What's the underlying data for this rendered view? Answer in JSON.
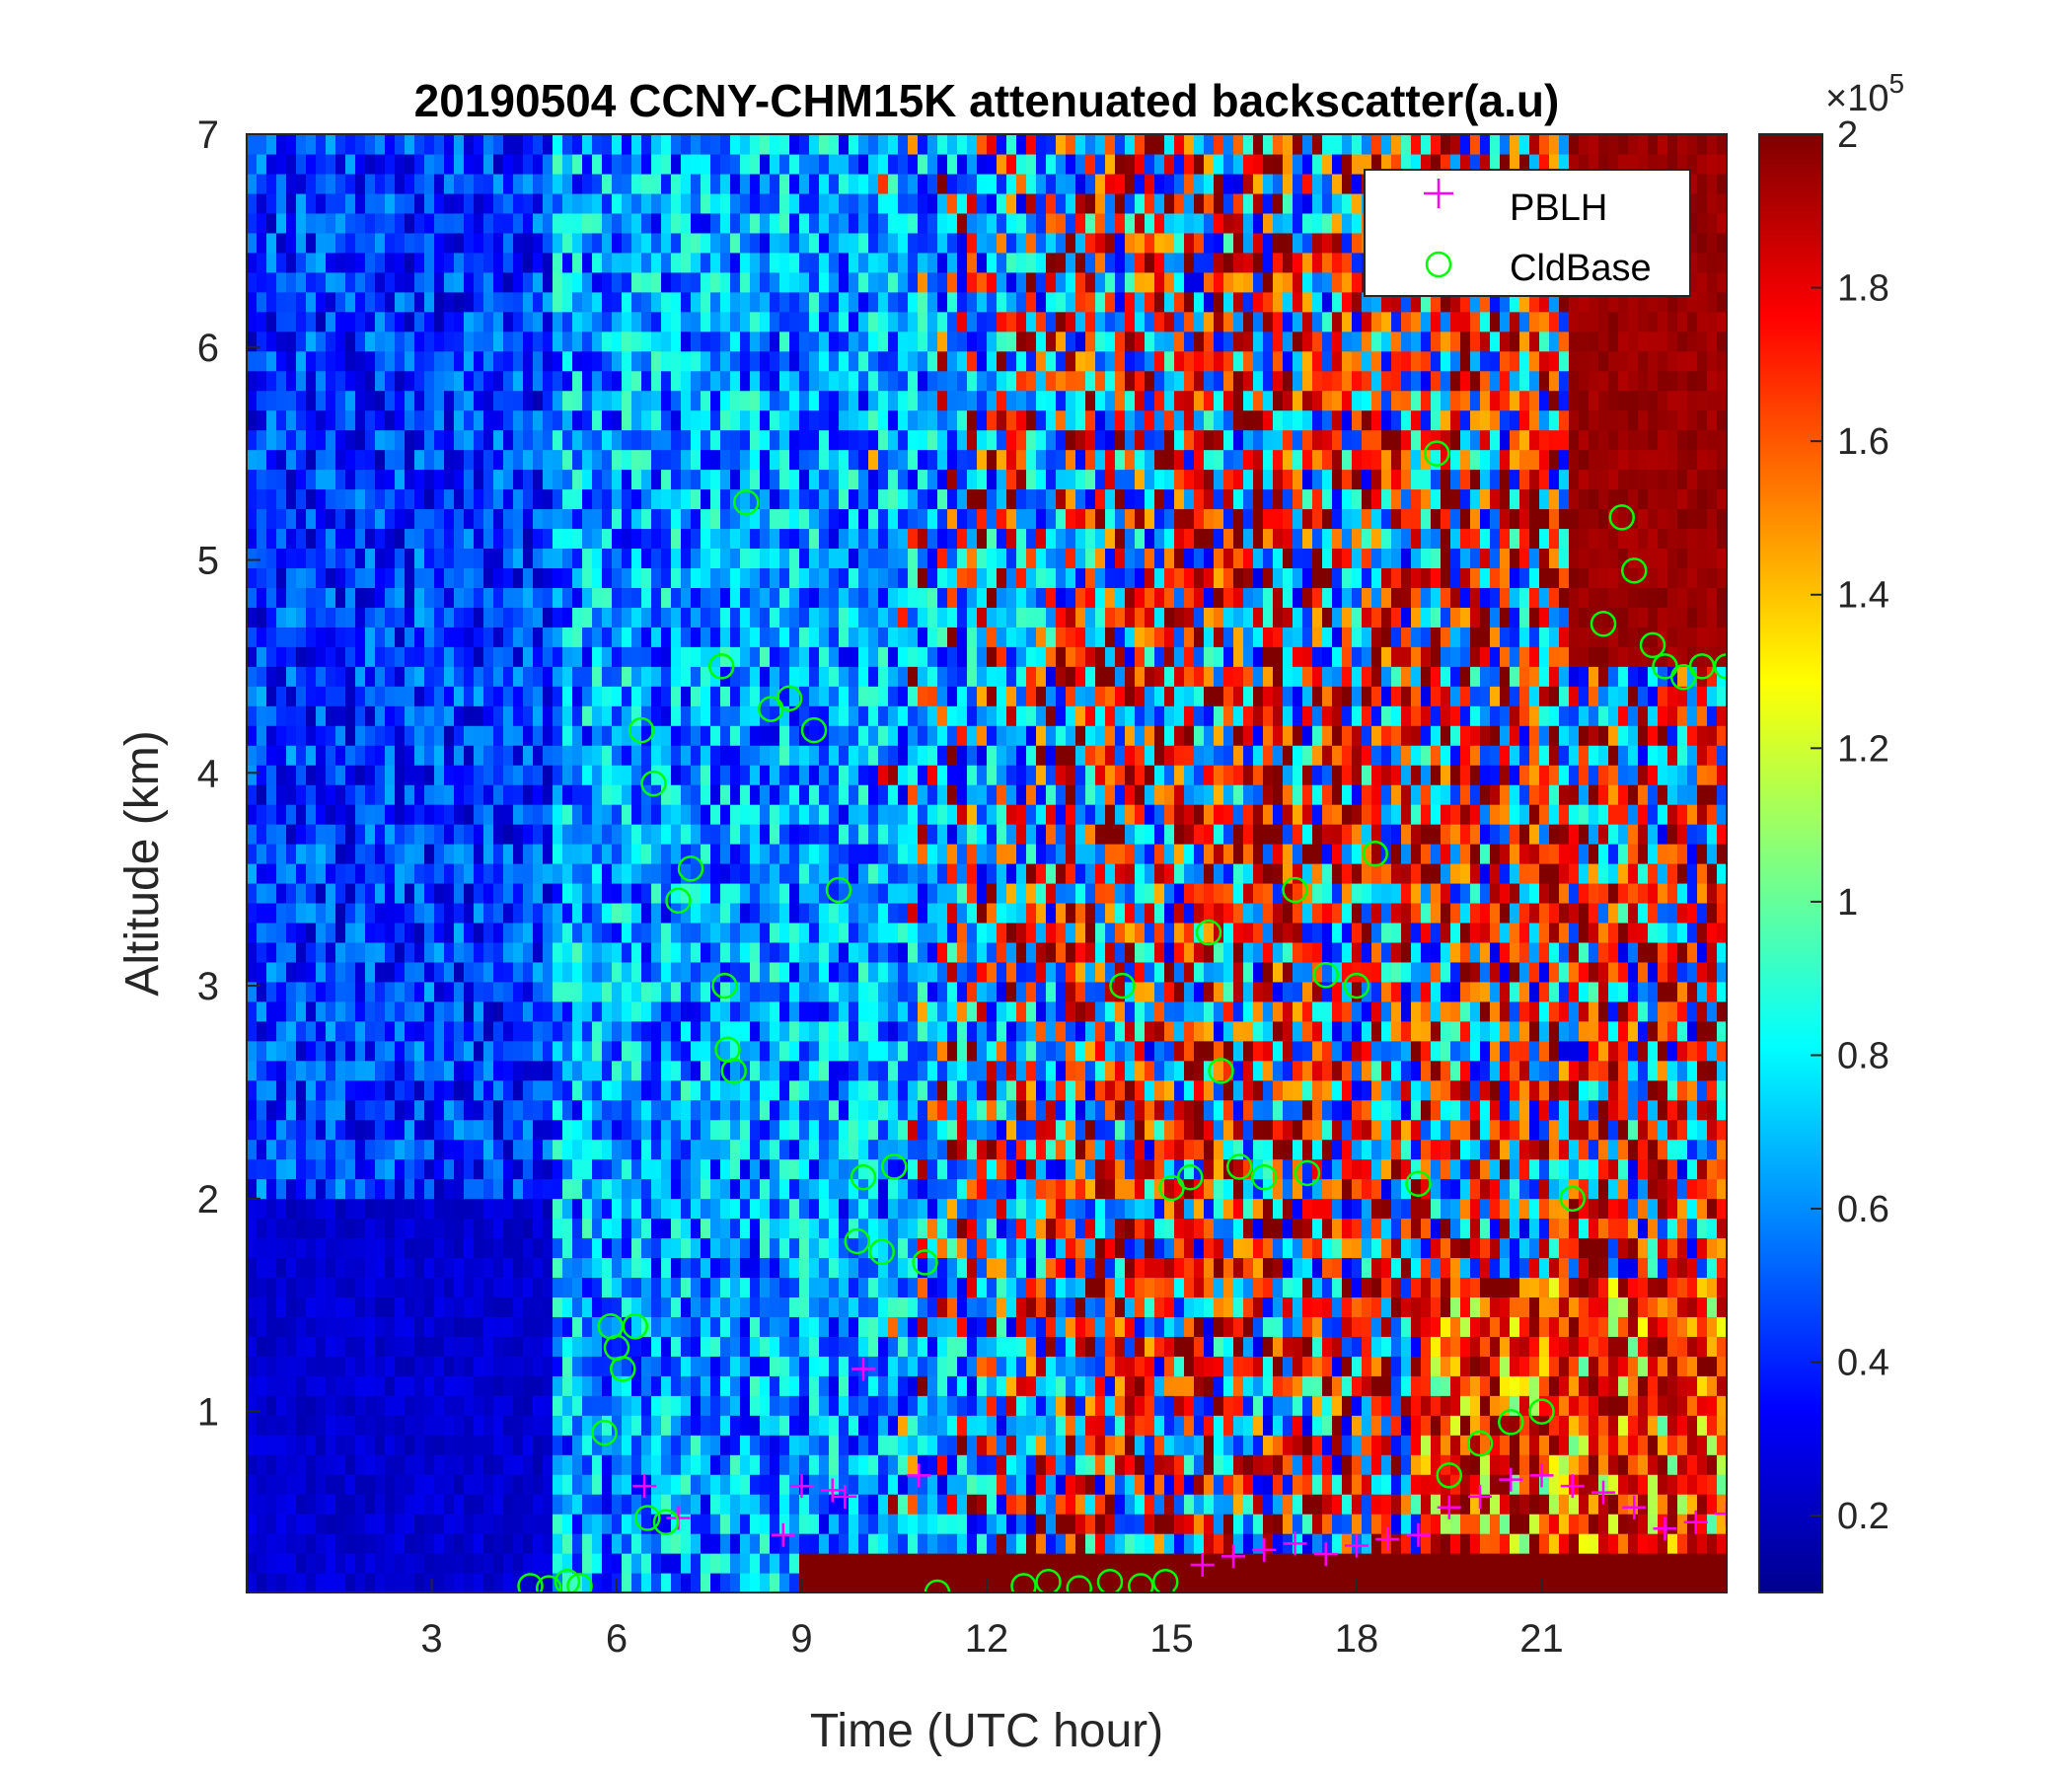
{
  "chart_data": {
    "type": "heatmap",
    "title": "20190504 CCNY-CHM15K attenuated backscatter(a.u)",
    "xlabel": "Time (UTC hour)",
    "ylabel": "Altitude (km)",
    "xlim": [
      0,
      24
    ],
    "ylim": [
      0.15,
      7
    ],
    "xticks": [
      3,
      6,
      9,
      12,
      15,
      18,
      21
    ],
    "yticks": [
      1,
      2,
      3,
      4,
      5,
      6,
      7
    ],
    "colorbar": {
      "colormap": "jet",
      "clim": [
        0.1,
        2.0
      ],
      "multiplier": "×10",
      "exponent": "5",
      "ticks": [
        0.2,
        0.4,
        0.6,
        0.8,
        1,
        1.2,
        1.4,
        1.6,
        1.8,
        2
      ],
      "tick_labels": [
        "0.2",
        "0.4",
        "0.6",
        "0.8",
        "1",
        "1.2",
        "1.4",
        "1.6",
        "1.8",
        "2"
      ]
    },
    "legend": {
      "location": "top-right"
    },
    "series": [
      {
        "name": "PBLH",
        "marker": "+",
        "color": "#ff00ff",
        "x": [
          6.45,
          7.0,
          8.7,
          9.0,
          9.5,
          9.7,
          10.0,
          10.9,
          15.5,
          16.0,
          16.5,
          17.0,
          17.5,
          18.0,
          18.5,
          19.0,
          19.5,
          20.0,
          20.5,
          21.0,
          21.5,
          22.0,
          22.5,
          23.0,
          23.5,
          24.0
        ],
        "y": [
          0.65,
          0.5,
          0.42,
          0.65,
          0.63,
          0.6,
          1.2,
          0.7,
          0.28,
          0.32,
          0.35,
          0.38,
          0.33,
          0.37,
          0.4,
          0.42,
          0.55,
          0.6,
          0.68,
          0.7,
          0.65,
          0.62,
          0.55,
          0.45,
          0.48,
          0.52
        ]
      },
      {
        "name": "CldBase",
        "marker": "o",
        "color": "#00ff00",
        "x": [
          4.6,
          4.9,
          5.2,
          5.4,
          5.8,
          5.9,
          6.0,
          6.1,
          6.3,
          6.4,
          6.5,
          6.6,
          6.8,
          7.0,
          7.2,
          7.7,
          7.75,
          7.8,
          7.9,
          8.1,
          8.5,
          8.8,
          9.2,
          9.6,
          9.9,
          10.0,
          10.3,
          10.5,
          11.0,
          11.2,
          12.6,
          13.0,
          13.5,
          14.0,
          14.2,
          14.5,
          14.9,
          15.0,
          15.3,
          15.6,
          15.8,
          16.1,
          16.5,
          17.0,
          17.2,
          17.5,
          18.0,
          18.3,
          19.0,
          19.3,
          19.5,
          20.0,
          20.5,
          21.0,
          21.5,
          22.0,
          22.3,
          22.5,
          22.8,
          23.0,
          23.3,
          23.6,
          24.0
        ],
        "y": [
          0.18,
          0.17,
          0.2,
          0.18,
          0.9,
          1.4,
          1.3,
          1.2,
          1.4,
          4.2,
          0.5,
          3.95,
          0.48,
          3.4,
          3.55,
          4.5,
          3.0,
          2.7,
          2.6,
          5.27,
          4.3,
          4.35,
          4.2,
          3.45,
          1.8,
          2.1,
          1.75,
          2.15,
          1.7,
          0.15,
          0.18,
          0.2,
          0.17,
          0.2,
          3.0,
          0.18,
          0.2,
          2.05,
          2.1,
          3.25,
          2.6,
          2.15,
          2.1,
          3.45,
          2.12,
          3.05,
          3.0,
          3.62,
          2.07,
          5.5,
          0.7,
          0.85,
          0.95,
          1.0,
          2.0,
          4.7,
          5.2,
          4.95,
          4.6,
          4.5,
          4.45,
          4.5,
          4.5
        ]
      }
    ]
  }
}
